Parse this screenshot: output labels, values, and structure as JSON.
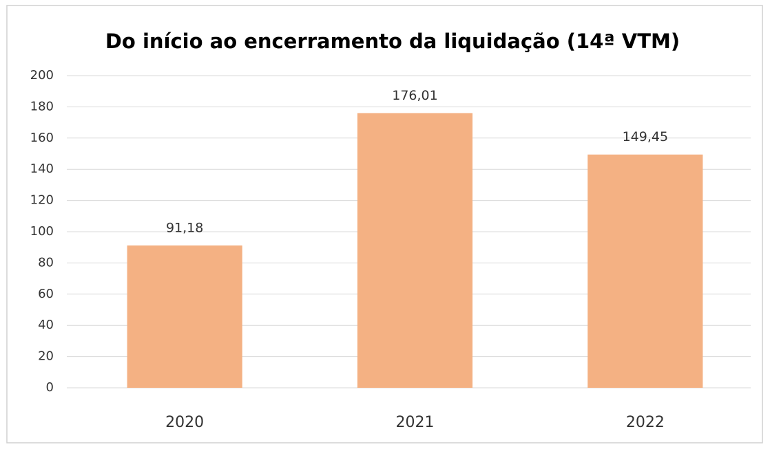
{
  "chart_data": {
    "type": "bar",
    "title": "Do início ao encerramento da liquidação (14ª VTM)",
    "categories": [
      "2020",
      "2021",
      "2022"
    ],
    "values": [
      91.18,
      176.01,
      149.45
    ],
    "value_labels": [
      "91,18",
      "176,01",
      "149,45"
    ],
    "color": "#f4b183",
    "ylim": [
      0,
      200
    ],
    "yticks": [
      0,
      20,
      40,
      60,
      80,
      100,
      120,
      140,
      160,
      180,
      200
    ],
    "grid": true
  }
}
